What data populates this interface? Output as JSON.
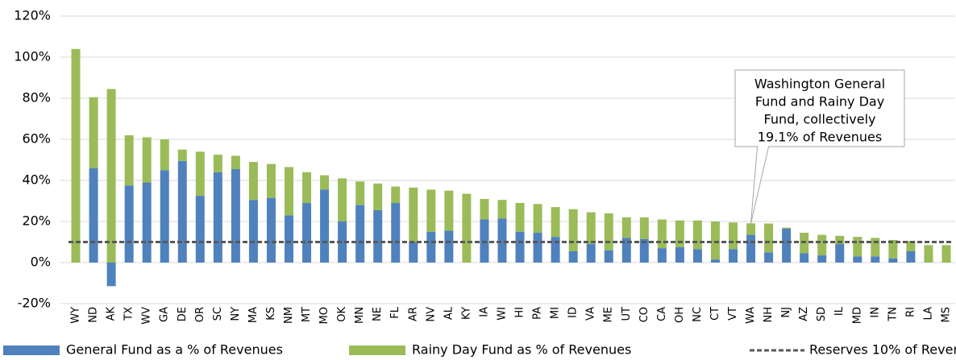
{
  "chart_data": {
    "type": "stacked_bar",
    "categories": [
      "WY",
      "ND",
      "AK",
      "TX",
      "WV",
      "GA",
      "DE",
      "OR",
      "SC",
      "NY",
      "MA",
      "KS",
      "NM",
      "MT",
      "MO",
      "OK",
      "MN",
      "NE",
      "FL",
      "AR",
      "NV",
      "AL",
      "KY",
      "IA",
      "WI",
      "HI",
      "PA",
      "MI",
      "ID",
      "VA",
      "ME",
      "UT",
      "CO",
      "CA",
      "OH",
      "NC",
      "CT",
      "VT",
      "WA",
      "NH",
      "NJ",
      "AZ",
      "SD",
      "IL",
      "MD",
      "IN",
      "TN",
      "RI",
      "LA",
      "MS"
    ],
    "series": [
      {
        "name": "General Fund as a % of Revenues",
        "color": "#4f81bd",
        "values": [
          0,
          46,
          -11.5,
          37.5,
          39,
          45,
          49.5,
          32.5,
          44,
          45.5,
          30.5,
          31.5,
          23,
          29,
          35.5,
          20,
          28,
          25.5,
          29,
          10,
          15,
          15.5,
          0,
          21,
          21.5,
          15,
          14.5,
          12.5,
          5.5,
          9,
          6,
          12,
          11.5,
          7,
          7.5,
          6.5,
          1.5,
          6.5,
          13.5,
          5,
          16.5,
          4.5,
          3.5,
          9,
          3,
          3,
          2,
          5.5,
          0,
          0
        ]
      },
      {
        "name": "Rainy Day Fund as % of Revenues",
        "color": "#9bbb59",
        "values": [
          104,
          34.5,
          84.5,
          24.5,
          22,
          15,
          5.5,
          21.5,
          8.5,
          6.5,
          18.5,
          16.5,
          23.5,
          15,
          7,
          21,
          11.5,
          13,
          8,
          26.5,
          20.5,
          19.5,
          33.5,
          10,
          9,
          14,
          14,
          14.5,
          20.5,
          15.5,
          18,
          10,
          10.5,
          14,
          13,
          14,
          18.5,
          13,
          5.6,
          14,
          0.5,
          10,
          10,
          4,
          9.5,
          9,
          9,
          5,
          8.5,
          8.5
        ]
      }
    ],
    "reference_line": {
      "name": "Reserves 10% of Revenues",
      "value": 10,
      "color": "#595959"
    },
    "annotation": {
      "lines": [
        "Washington General",
        "Fund and Rainy Day",
        "Fund, collectively",
        "19.1% of Revenues"
      ],
      "x": "WA",
      "y": 19.1
    },
    "ylim": [
      -20,
      120
    ],
    "yticks": [
      {
        "value": -20,
        "label": "-20%"
      },
      {
        "value": 0,
        "label": "0%"
      },
      {
        "value": 20,
        "label": "20%"
      },
      {
        "value": 40,
        "label": "40%"
      },
      {
        "value": 60,
        "label": "60%"
      },
      {
        "value": 80,
        "label": "80%"
      },
      {
        "value": 100,
        "label": "100%"
      },
      {
        "value": 120,
        "label": "120%"
      }
    ],
    "grid": true
  }
}
